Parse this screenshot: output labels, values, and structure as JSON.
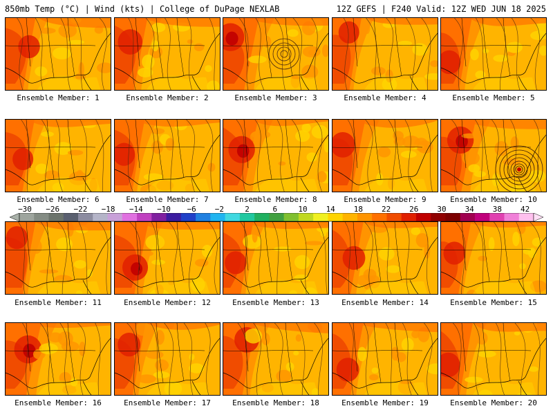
{
  "header": {
    "left": "850mb Temp (°C) | Wind (kts) | College of DuPage NEXLAB",
    "right": "12Z GEFS | F240 Valid: 12Z WED JUN 18 2025"
  },
  "panels": [
    {
      "label": "Ensemble Member: 1",
      "hot": 0.55,
      "low": null
    },
    {
      "label": "Ensemble Member: 2",
      "hot": 0.7,
      "low": null
    },
    {
      "label": "Ensemble Member: 3",
      "hot": 0.85,
      "low": "gulf-low"
    },
    {
      "label": "Ensemble Member: 4",
      "hot": 0.5,
      "low": null
    },
    {
      "label": "Ensemble Member: 5",
      "hot": 0.6,
      "low": null
    },
    {
      "label": "Ensemble Member: 6",
      "hot": 0.5,
      "low": null
    },
    {
      "label": "Ensemble Member: 7",
      "hot": 0.55,
      "low": null
    },
    {
      "label": "Ensemble Member: 8",
      "hot": 0.8,
      "low": null
    },
    {
      "label": "Ensemble Member: 9",
      "hot": 0.7,
      "low": null
    },
    {
      "label": "Ensemble Member: 10",
      "hot": 0.8,
      "low": "atlantic-hurricane"
    },
    {
      "label": "Ensemble Member: 11",
      "hot": 0.55,
      "low": null
    },
    {
      "label": "Ensemble Member: 12",
      "hot": 0.75,
      "low": null
    },
    {
      "label": "Ensemble Member: 13",
      "hot": 0.55,
      "low": null
    },
    {
      "label": "Ensemble Member: 14",
      "hot": 0.6,
      "low": null
    },
    {
      "label": "Ensemble Member: 15",
      "hot": 0.55,
      "low": null
    },
    {
      "label": "Ensemble Member: 16",
      "hot": 0.85,
      "low": null
    },
    {
      "label": "Ensemble Member: 17",
      "hot": 0.6,
      "low": null
    },
    {
      "label": "Ensemble Member: 18",
      "hot": 0.7,
      "low": null
    },
    {
      "label": "Ensemble Member: 19",
      "hot": 0.6,
      "low": null
    },
    {
      "label": "Ensemble Member: 20",
      "hot": 0.65,
      "low": null
    }
  ],
  "colorbar": {
    "ticks": [
      "−30",
      "−26",
      "−22",
      "−18",
      "−14",
      "−10",
      "−6",
      "−2",
      "2",
      "6",
      "10",
      "14",
      "18",
      "22",
      "26",
      "30",
      "34",
      "38",
      "42"
    ],
    "colors": [
      "#9ea59e",
      "#848c84",
      "#6c746c",
      "#5a6070",
      "#8c8ca0",
      "#b4b4c8",
      "#c8a0d8",
      "#e070e0",
      "#c040c0",
      "#8020a0",
      "#3c1ca0",
      "#2040c8",
      "#2080e0",
      "#20b4f0",
      "#40d8e0",
      "#20c8a0",
      "#20b060",
      "#40a040",
      "#80c030",
      "#c0d820",
      "#f0f020",
      "#ffd400",
      "#ffb400",
      "#ff9400",
      "#ff7000",
      "#f04c00",
      "#e02000",
      "#c00000",
      "#900000",
      "#7c0000",
      "#a00050",
      "#c0007c",
      "#e040b0",
      "#f080d8",
      "#ffc0ee"
    ]
  }
}
